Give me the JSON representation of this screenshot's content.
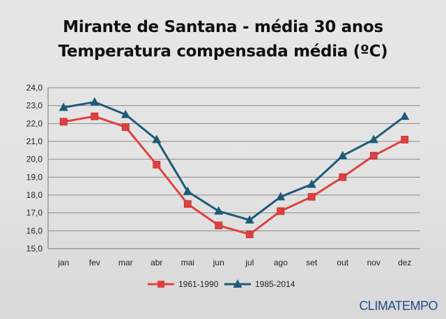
{
  "chart_data": {
    "type": "line",
    "title": "Mirante de Santana - média 30 anos",
    "subtitle": "Temperatura compensada média (ºC)",
    "categories": [
      "jan",
      "fev",
      "mar",
      "abr",
      "mai",
      "jun",
      "jul",
      "ago",
      "set",
      "out",
      "nov",
      "dez"
    ],
    "ylim": [
      15.0,
      24.0
    ],
    "yticks": [
      "15,0",
      "16,0",
      "17,0",
      "18,0",
      "19,0",
      "20,0",
      "21,0",
      "22,0",
      "23,0",
      "24,0"
    ],
    "grid": true,
    "legend": "bottom",
    "series": [
      {
        "name": "1961-1990",
        "color": "#e04040",
        "marker": "square",
        "values": [
          22.1,
          22.4,
          21.8,
          19.7,
          17.5,
          16.3,
          15.8,
          17.1,
          17.9,
          19.0,
          20.2,
          21.1
        ]
      },
      {
        "name": "1985-2014",
        "color": "#1e5a78",
        "marker": "triangle",
        "values": [
          22.9,
          23.2,
          22.5,
          21.1,
          18.2,
          17.1,
          16.6,
          17.9,
          18.6,
          20.2,
          21.1,
          22.4
        ]
      }
    ]
  },
  "brand": "CLIMATEMPO"
}
